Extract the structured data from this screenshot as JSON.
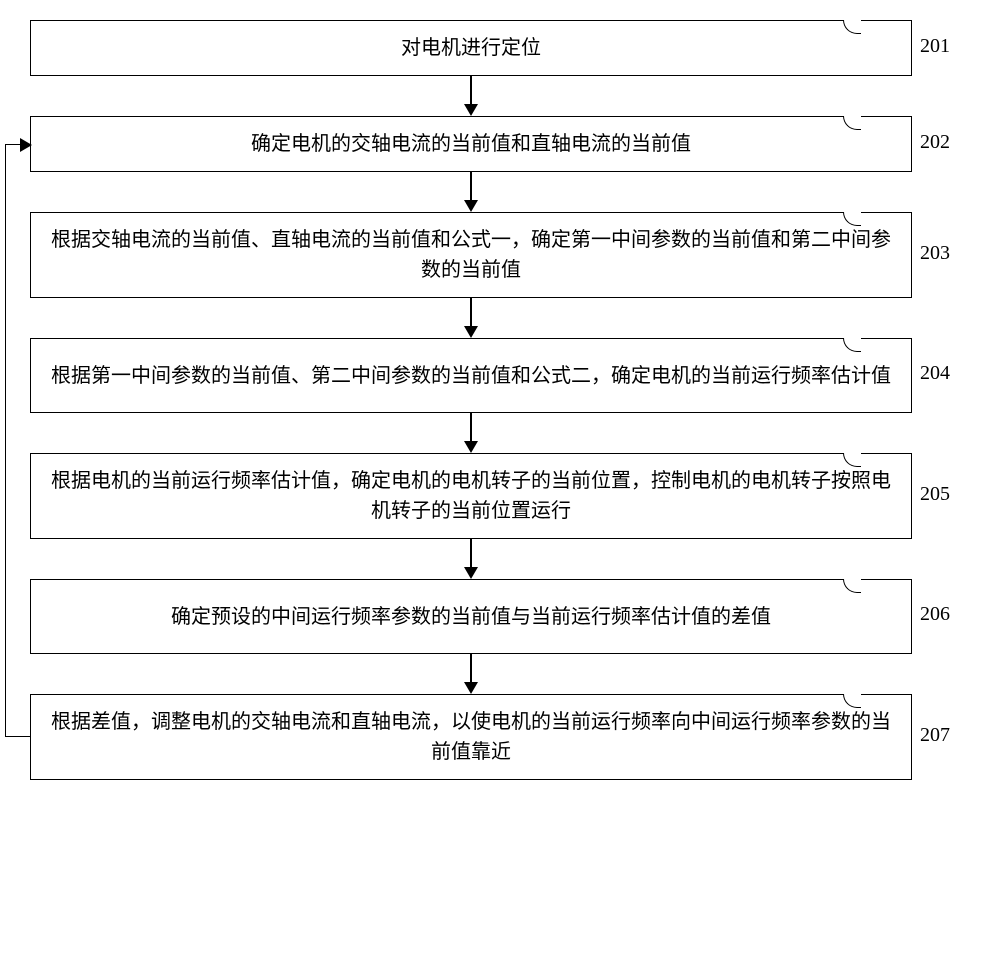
{
  "flowchart": {
    "type": "flowchart",
    "background_color": "#ffffff",
    "border_color": "#000000",
    "text_color": "#000000",
    "font_size": 20,
    "arrow_color": "#000000",
    "nodes": [
      {
        "id": "201",
        "label": "201",
        "text": "对电机进行定位",
        "height": "short"
      },
      {
        "id": "202",
        "label": "202",
        "text": "确定电机的交轴电流的当前值和直轴电流的当前值",
        "height": "short"
      },
      {
        "id": "203",
        "label": "203",
        "text": "根据交轴电流的当前值、直轴电流的当前值和公式一，确定第一中间参数的当前值和第二中间参数的当前值",
        "height": "tall"
      },
      {
        "id": "204",
        "label": "204",
        "text": "根据第一中间参数的当前值、第二中间参数的当前值和公式二，确定电机的当前运行频率估计值",
        "height": "tall"
      },
      {
        "id": "205",
        "label": "205",
        "text": "根据电机的当前运行频率估计值，确定电机的电机转子的当前位置，控制电机的电机转子按照电机转子的当前位置运行",
        "height": "tall"
      },
      {
        "id": "206",
        "label": "206",
        "text": "确定预设的中间运行频率参数的当前值与当前运行频率估计值的差值",
        "height": "tall"
      },
      {
        "id": "207",
        "label": "207",
        "text": "根据差值，调整电机的交轴电流和直轴电流，以使电机的当前运行频率向中间运行频率参数的当前值靠近",
        "height": "tall"
      }
    ],
    "feedback": {
      "from": "207",
      "to": "202"
    }
  }
}
